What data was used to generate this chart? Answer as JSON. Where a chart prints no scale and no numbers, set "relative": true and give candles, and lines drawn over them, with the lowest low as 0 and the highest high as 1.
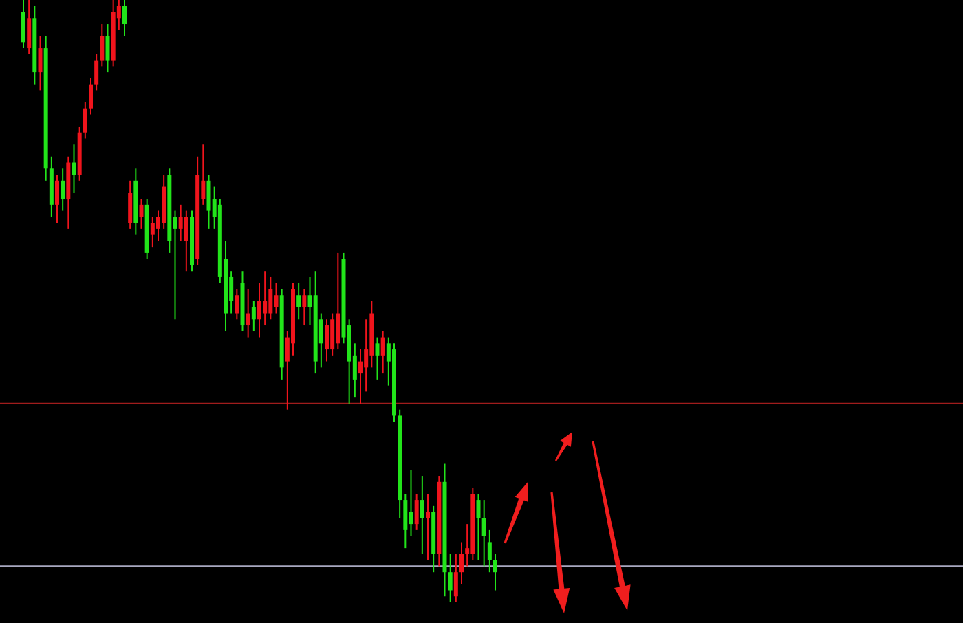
{
  "chart_data": {
    "type": "candlestick",
    "relative": true,
    "categories": [
      null,
      null,
      null,
      null,
      null,
      null,
      null,
      null,
      null,
      null,
      null,
      null,
      null,
      null,
      null,
      null,
      null,
      null,
      null,
      null,
      null,
      null,
      null,
      null,
      null,
      null,
      null,
      null,
      null,
      null,
      null,
      null,
      null,
      null,
      null,
      null,
      null,
      null,
      null,
      null,
      null,
      null,
      null,
      null,
      null,
      null,
      null,
      null,
      null,
      null,
      null,
      null,
      null,
      null,
      null,
      null,
      null,
      null,
      null,
      null,
      null,
      null,
      null,
      null,
      null,
      null,
      null,
      null,
      null,
      null,
      null,
      null,
      null,
      null,
      null,
      null,
      null,
      null,
      null,
      null,
      null,
      null,
      null,
      null,
      null
    ],
    "ohlc": [
      [
        0.98,
        1,
        0.92,
        0.93
      ],
      [
        0.92,
        1,
        0.91,
        0.97
      ],
      [
        0.97,
        0.99,
        0.86,
        0.88
      ],
      [
        0.88,
        0.94,
        0.85,
        0.92
      ],
      [
        0.92,
        0.94,
        0.7,
        0.72
      ],
      [
        0.72,
        0.74,
        0.64,
        0.66
      ],
      [
        0.66,
        0.71,
        0.63,
        0.7
      ],
      [
        0.7,
        0.72,
        0.65,
        0.67
      ],
      [
        0.67,
        0.74,
        0.62,
        0.73
      ],
      [
        0.73,
        0.76,
        0.68,
        0.71
      ],
      [
        0.71,
        0.79,
        0.7,
        0.78
      ],
      [
        0.78,
        0.83,
        0.77,
        0.82
      ],
      [
        0.82,
        0.87,
        0.81,
        0.86
      ],
      [
        0.86,
        0.91,
        0.85,
        0.9
      ],
      [
        0.9,
        0.96,
        0.89,
        0.94
      ],
      [
        0.94,
        0.96,
        0.88,
        0.9
      ],
      [
        0.9,
        1,
        0.89,
        0.98
      ],
      [
        0.97,
        1,
        0.95,
        0.99
      ],
      [
        0.99,
        1,
        0.94,
        0.96
      ],
      [
        0.63,
        0.7,
        0.62,
        0.68
      ],
      [
        0.7,
        0.72,
        0.61,
        0.63
      ],
      [
        0.64,
        0.67,
        0.62,
        0.66
      ],
      [
        0.66,
        0.67,
        0.57,
        0.58
      ],
      [
        0.61,
        0.64,
        0.59,
        0.63
      ],
      [
        0.62,
        0.65,
        0.6,
        0.64
      ],
      [
        0.63,
        0.71,
        0.62,
        0.69
      ],
      [
        0.71,
        0.72,
        0.58,
        0.6
      ],
      [
        0.64,
        0.65,
        0.47,
        0.62
      ],
      [
        0.62,
        0.66,
        0.6,
        0.64
      ],
      [
        0.6,
        0.65,
        0.55,
        0.64
      ],
      [
        0.64,
        0.65,
        0.55,
        0.56
      ],
      [
        0.57,
        0.74,
        0.56,
        0.71
      ],
      [
        0.67,
        0.76,
        0.66,
        0.7
      ],
      [
        0.7,
        0.71,
        0.62,
        0.65
      ],
      [
        0.67,
        0.69,
        0.62,
        0.64
      ],
      [
        0.66,
        0.67,
        0.53,
        0.54
      ],
      [
        0.57,
        0.6,
        0.45,
        0.48
      ],
      [
        0.54,
        0.55,
        0.48,
        0.5
      ],
      [
        0.48,
        0.52,
        0.47,
        0.51
      ],
      [
        0.53,
        0.55,
        0.45,
        0.46
      ],
      [
        0.46,
        0.52,
        0.44,
        0.48
      ],
      [
        0.49,
        0.5,
        0.45,
        0.47
      ],
      [
        0.47,
        0.53,
        0.44,
        0.5
      ],
      [
        0.48,
        0.55,
        0.46,
        0.5
      ],
      [
        0.48,
        0.54,
        0.47,
        0.52
      ],
      [
        0.49,
        0.53,
        0.48,
        0.51
      ],
      [
        0.51,
        0.52,
        0.37,
        0.39
      ],
      [
        0.4,
        0.45,
        0.32,
        0.44
      ],
      [
        0.43,
        0.53,
        0.41,
        0.52
      ],
      [
        0.51,
        0.53,
        0.47,
        0.49
      ],
      [
        0.49,
        0.52,
        0.46,
        0.51
      ],
      [
        0.51,
        0.54,
        0.46,
        0.49
      ],
      [
        0.51,
        0.55,
        0.38,
        0.4
      ],
      [
        0.47,
        0.48,
        0.39,
        0.43
      ],
      [
        0.42,
        0.47,
        0.4,
        0.46
      ],
      [
        0.42,
        0.48,
        0.41,
        0.47
      ],
      [
        0.43,
        0.58,
        0.42,
        0.48
      ],
      [
        0.57,
        0.58,
        0.43,
        0.44
      ],
      [
        0.46,
        0.47,
        0.33,
        0.4
      ],
      [
        0.41,
        0.43,
        0.34,
        0.37
      ],
      [
        0.38,
        0.42,
        0.33,
        0.4
      ],
      [
        0.39,
        0.47,
        0.35,
        0.42
      ],
      [
        0.41,
        0.5,
        0.39,
        0.48
      ],
      [
        0.43,
        0.44,
        0.37,
        0.41
      ],
      [
        0.41,
        0.45,
        0.38,
        0.44
      ],
      [
        0.43,
        0.44,
        0.36,
        0.4
      ],
      [
        0.42,
        0.43,
        0.3,
        0.31
      ],
      [
        0.31,
        0.32,
        0.14,
        0.17
      ],
      [
        0.17,
        0.18,
        0.09,
        0.12
      ],
      [
        0.15,
        0.22,
        0.11,
        0.13
      ],
      [
        0.13,
        0.18,
        0.12,
        0.17
      ],
      [
        0.17,
        0.21,
        0.08,
        0.14
      ],
      [
        0.14,
        0.18,
        0.07,
        0.15
      ],
      [
        0.15,
        0.16,
        0.05,
        0.08
      ],
      [
        0.08,
        0.21,
        0.06,
        0.2
      ],
      [
        0.2,
        0.23,
        0.01,
        0.05
      ],
      [
        0.05,
        0.08,
        0,
        0.02
      ],
      [
        0.01,
        0.08,
        0,
        0.05
      ],
      [
        0.05,
        0.1,
        0.03,
        0.08
      ],
      [
        0.08,
        0.13,
        0.06,
        0.09
      ],
      [
        0.08,
        0.19,
        0.07,
        0.18
      ],
      [
        0.17,
        0.18,
        0.07,
        0.14
      ],
      [
        0.14,
        0.17,
        0.06,
        0.11
      ],
      [
        0.1,
        0.12,
        0.05,
        0.07
      ],
      [
        0.07,
        0.08,
        0.02,
        0.05
      ]
    ],
    "ref_lines": [
      {
        "axis": "y",
        "value": 0.33,
        "color": "#a01c1c"
      },
      {
        "axis": "y",
        "value": 0.06,
        "color": "#a8a8c0"
      }
    ]
  }
}
